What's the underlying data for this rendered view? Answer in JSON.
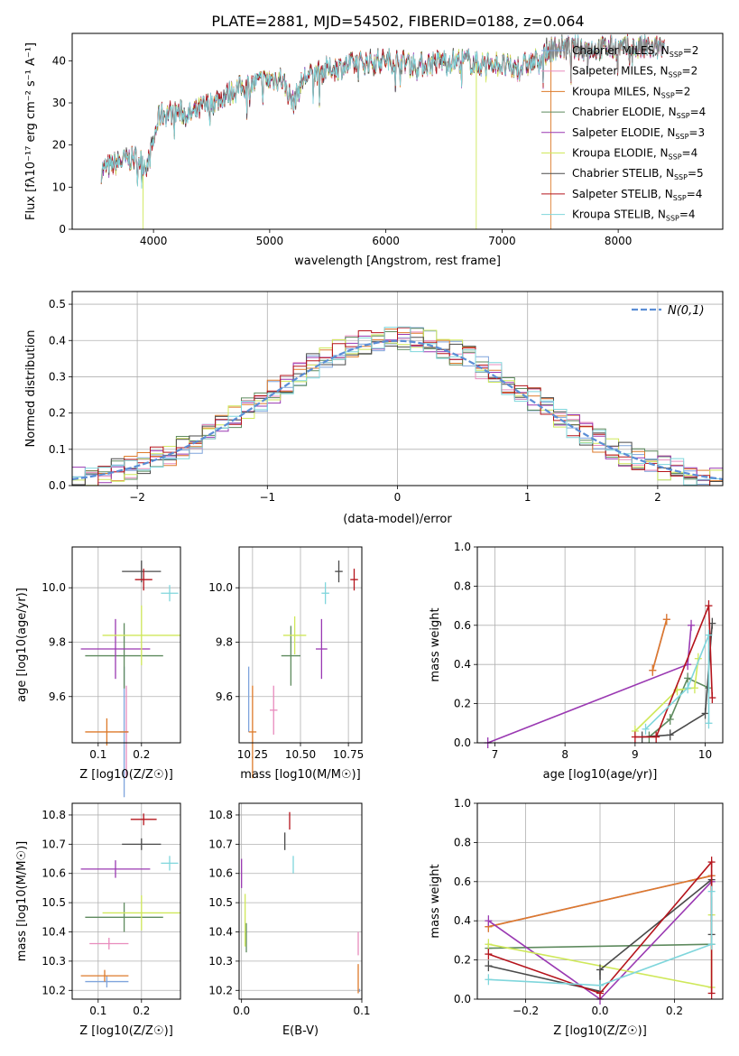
{
  "title": "PLATE=2881, MJD=54502, FIBERID=0188, z=0.064",
  "colors": {
    "Chabrier MILES": "#7fa4dc",
    "Salpeter MILES": "#e88bbd",
    "Kroupa MILES": "#dd7a2a",
    "Chabrier ELODIE": "#5e8a5e",
    "Salpeter ELODIE": "#9a39b2",
    "Kroupa ELODIE": "#cfe85a",
    "Chabrier STELIB": "#4a4a4a",
    "Salpeter STELIB": "#b5141c",
    "Kroupa STELIB": "#7fd6dc",
    "normal": "#5b8ed6"
  },
  "chart_data": [
    {
      "type": "line",
      "panel": "spectrum",
      "xlabel": "wavelength [Angstrom, rest frame]",
      "ylabel": "Flux [f_λ10^-17 erg cm^-2 s^-1 A^-1]",
      "xlim": [
        3300,
        8900
      ],
      "ylim": [
        0,
        46.5
      ],
      "xticks": [
        "4000",
        "5000",
        "6000",
        "7000",
        "8000"
      ],
      "yticks": [
        "0",
        "10",
        "20",
        "30",
        "40"
      ],
      "grid": false,
      "legend_position": "right",
      "continuum": {
        "x": [
          3550,
          3700,
          3850,
          3950,
          4050,
          4200,
          4300,
          4500,
          4700,
          4900,
          5100,
          5200,
          5300,
          5500,
          5700,
          5900,
          6100,
          6300,
          6500,
          6700,
          6800,
          6900,
          7100,
          7300,
          7420
        ],
        "y": [
          14,
          16,
          17,
          15,
          27,
          28,
          27,
          30,
          33,
          35,
          36,
          30,
          36,
          38,
          39,
          40,
          40,
          39,
          40,
          40,
          39,
          40,
          38,
          40,
          43
        ]
      },
      "dropouts": [
        {
          "series": "Kroupa ELODIE",
          "x": 3910
        },
        {
          "series": "Kroupa ELODIE",
          "x": 6780
        },
        {
          "series": "Kroupa MILES",
          "x": 7420
        }
      ],
      "series": [
        {
          "name": "Chabrier MILES",
          "N": "2"
        },
        {
          "name": "Salpeter MILES",
          "N": "2"
        },
        {
          "name": "Kroupa MILES",
          "N": "2"
        },
        {
          "name": "Chabrier ELODIE",
          "N": "4"
        },
        {
          "name": "Salpeter ELODIE",
          "N": "3"
        },
        {
          "name": "Kroupa ELODIE",
          "N": "4"
        },
        {
          "name": "Chabrier STELIB",
          "N": "5"
        },
        {
          "name": "Salpeter STELIB",
          "N": "4"
        },
        {
          "name": "Kroupa STELIB",
          "N": "4"
        }
      ]
    },
    {
      "type": "line",
      "panel": "residuals",
      "xlabel": "(data-model)/error",
      "ylabel": "Normed distribution",
      "xlim": [
        -2.5,
        2.5
      ],
      "ylim": [
        0,
        0.535
      ],
      "xticks": [
        "−2",
        "−1",
        "0",
        "1",
        "2"
      ],
      "yticks": [
        "0.0",
        "0.1",
        "0.2",
        "0.3",
        "0.4",
        "0.5"
      ],
      "grid": true,
      "legend_position": "top-right",
      "legend": "N(0,1)",
      "bin_width": 0.1
    },
    {
      "type": "scatter",
      "panel": "age-vs-Z",
      "xlabel": "Z [log10(Z/Z☉)]",
      "ylabel": "age [log10(age/yr)]",
      "xlim": [
        0.04,
        0.29
      ],
      "ylim": [
        9.43,
        10.15
      ],
      "xticks": [
        "0.1",
        "0.2"
      ],
      "yticks": [
        "9.6",
        "9.8",
        "10.0"
      ],
      "grid": true,
      "points": [
        {
          "series": "Chabrier MILES",
          "x": 0.16,
          "y": 9.47,
          "ex": 0.01,
          "ey": 0.24
        },
        {
          "series": "Salpeter MILES",
          "x": 0.165,
          "y": 9.47,
          "ex": 0.005,
          "ey": 0.17
        },
        {
          "series": "Kroupa MILES",
          "x": 0.12,
          "y": 9.47,
          "ex": 0.05,
          "ey": 0.05
        },
        {
          "series": "Chabrier ELODIE",
          "x": 0.16,
          "y": 9.75,
          "ex": 0.09,
          "ey": 0.12
        },
        {
          "series": "Salpeter ELODIE",
          "x": 0.14,
          "y": 9.775,
          "ex": 0.08,
          "ey": 0.11
        },
        {
          "series": "Kroupa ELODIE",
          "x": 0.2,
          "y": 9.825,
          "ex": 0.09,
          "ey": 0.11
        },
        {
          "series": "Chabrier STELIB",
          "x": 0.2,
          "y": 10.06,
          "ex": 0.045,
          "ey": 0.04
        },
        {
          "series": "Salpeter STELIB",
          "x": 0.205,
          "y": 10.03,
          "ex": 0.02,
          "ey": 0.04
        },
        {
          "series": "Kroupa STELIB",
          "x": 0.265,
          "y": 9.98,
          "ex": 0.02,
          "ey": 0.03
        }
      ]
    },
    {
      "type": "scatter",
      "panel": "age-vs-mass",
      "xlabel": "mass [log10(M/M☉)]",
      "ylabel": "",
      "xlim": [
        10.18,
        10.82
      ],
      "ylim": [
        9.43,
        10.15
      ],
      "xticks": [
        "10.25",
        "10.50",
        "10.75"
      ],
      "yticks": [
        "9.6",
        "9.8",
        "10.0"
      ],
      "grid": true,
      "points": [
        {
          "series": "Chabrier MILES",
          "x": 10.23,
          "y": 9.59,
          "ex": 0.0,
          "ey": 0.12
        },
        {
          "series": "Salpeter MILES",
          "x": 10.36,
          "y": 9.55,
          "ex": 0.02,
          "ey": 0.09
        },
        {
          "series": "Kroupa MILES",
          "x": 10.25,
          "y": 9.47,
          "ex": 0.02,
          "ey": 0.17
        },
        {
          "series": "Chabrier ELODIE",
          "x": 10.45,
          "y": 9.75,
          "ex": 0.05,
          "ey": 0.11
        },
        {
          "series": "Salpeter ELODIE",
          "x": 10.61,
          "y": 9.775,
          "ex": 0.03,
          "ey": 0.11
        },
        {
          "series": "Kroupa ELODIE",
          "x": 10.47,
          "y": 9.825,
          "ex": 0.06,
          "ey": 0.07
        },
        {
          "series": "Chabrier STELIB",
          "x": 10.7,
          "y": 10.06,
          "ex": 0.02,
          "ey": 0.04
        },
        {
          "series": "Salpeter STELIB",
          "x": 10.78,
          "y": 10.03,
          "ex": 0.02,
          "ey": 0.04
        },
        {
          "series": "Kroupa STELIB",
          "x": 10.63,
          "y": 9.98,
          "ex": 0.02,
          "ey": 0.04
        }
      ]
    },
    {
      "type": "line",
      "panel": "weight-vs-age",
      "xlabel": "age [log10(age/yr)]",
      "ylabel": "mass weight",
      "xlim": [
        6.75,
        10.25
      ],
      "ylim": [
        0,
        1.0
      ],
      "xticks": [
        "7",
        "8",
        "9",
        "10"
      ],
      "yticks": [
        "0.0",
        "0.2",
        "0.4",
        "0.6",
        "0.8",
        "1.0"
      ],
      "grid": true,
      "series": [
        {
          "name": "Chabrier MILES",
          "x": [
            9.25,
            9.45
          ],
          "y": [
            0.37,
            0.63
          ]
        },
        {
          "name": "Salpeter MILES",
          "x": [
            9.25,
            9.45
          ],
          "y": [
            0.37,
            0.63
          ]
        },
        {
          "name": "Kroupa MILES",
          "x": [
            9.25,
            9.45
          ],
          "y": [
            0.37,
            0.63
          ]
        },
        {
          "name": "Chabrier ELODIE",
          "x": [
            9.2,
            9.5,
            9.75,
            10.05
          ],
          "y": [
            0.03,
            0.12,
            0.33,
            0.28
          ]
        },
        {
          "name": "Salpeter ELODIE",
          "x": [
            6.9,
            9.75,
            9.8
          ],
          "y": [
            0.0,
            0.4,
            0.6
          ]
        },
        {
          "name": "Kroupa ELODIE",
          "x": [
            9.0,
            9.6,
            9.85,
            9.9
          ],
          "y": [
            0.06,
            0.27,
            0.28,
            0.43
          ]
        },
        {
          "name": "Chabrier STELIB",
          "x": [
            9.1,
            9.5,
            10.0,
            10.1
          ],
          "y": [
            0.03,
            0.04,
            0.15,
            0.61
          ]
        },
        {
          "name": "Salpeter STELIB",
          "x": [
            9.0,
            9.3,
            10.05,
            10.1
          ],
          "y": [
            0.03,
            0.03,
            0.7,
            0.23
          ]
        },
        {
          "name": "Kroupa STELIB",
          "x": [
            9.15,
            9.75,
            10.05,
            10.05
          ],
          "y": [
            0.07,
            0.28,
            0.55,
            0.1
          ]
        }
      ]
    },
    {
      "type": "scatter",
      "panel": "mass-vs-Z",
      "xlabel": "Z [log10(Z/Z☉)]",
      "ylabel": "mass [log10(M/M☉)]",
      "xlim": [
        0.04,
        0.29
      ],
      "ylim": [
        10.17,
        10.84
      ],
      "xticks": [
        "0.1",
        "0.2"
      ],
      "yticks": [
        "10.2",
        "10.3",
        "10.4",
        "10.5",
        "10.6",
        "10.7",
        "10.8"
      ],
      "grid": true,
      "points": [
        {
          "series": "Chabrier MILES",
          "x": 0.12,
          "y": 10.23,
          "ex": 0.05,
          "ey": 0.02
        },
        {
          "series": "Salpeter MILES",
          "x": 0.125,
          "y": 10.36,
          "ex": 0.045,
          "ey": 0.02
        },
        {
          "series": "Kroupa MILES",
          "x": 0.115,
          "y": 10.25,
          "ex": 0.055,
          "ey": 0.02
        },
        {
          "series": "Chabrier ELODIE",
          "x": 0.16,
          "y": 10.45,
          "ex": 0.09,
          "ey": 0.05
        },
        {
          "series": "Salpeter ELODIE",
          "x": 0.14,
          "y": 10.615,
          "ex": 0.08,
          "ey": 0.03
        },
        {
          "series": "Kroupa ELODIE",
          "x": 0.2,
          "y": 10.465,
          "ex": 0.09,
          "ey": 0.06
        },
        {
          "series": "Chabrier STELIB",
          "x": 0.2,
          "y": 10.7,
          "ex": 0.045,
          "ey": 0.02
        },
        {
          "series": "Salpeter STELIB",
          "x": 0.205,
          "y": 10.785,
          "ex": 0.03,
          "ey": 0.02
        },
        {
          "series": "Kroupa STELIB",
          "x": 0.265,
          "y": 10.635,
          "ex": 0.02,
          "ey": 0.025
        }
      ]
    },
    {
      "type": "scatter",
      "panel": "mass-vs-EBV",
      "xlabel": "E(B-V)",
      "ylabel": "",
      "xlim": [
        -0.002,
        0.1
      ],
      "ylim": [
        10.17,
        10.84
      ],
      "xticks": [
        "0.0",
        "0.1"
      ],
      "yticks": [
        "10.2",
        "10.3",
        "10.4",
        "10.5",
        "10.6",
        "10.7",
        "10.8"
      ],
      "grid": true,
      "points": [
        {
          "series": "Chabrier MILES",
          "x": 0.098,
          "y": 10.2,
          "ey": 0.005
        },
        {
          "series": "Salpeter MILES",
          "x": 0.097,
          "y": 10.36,
          "ey": 0.04
        },
        {
          "series": "Kroupa MILES",
          "x": 0.097,
          "y": 10.24,
          "ey": 0.05
        },
        {
          "series": "Chabrier ELODIE",
          "x": 0.004,
          "y": 10.38,
          "ey": 0.05
        },
        {
          "series": "Salpeter ELODIE",
          "x": 0.0,
          "y": 10.6,
          "ey": 0.05
        },
        {
          "series": "Kroupa ELODIE",
          "x": 0.003,
          "y": 10.44,
          "ey": 0.09
        },
        {
          "series": "Chabrier STELIB",
          "x": 0.036,
          "y": 10.71,
          "ey": 0.03
        },
        {
          "series": "Salpeter STELIB",
          "x": 0.04,
          "y": 10.78,
          "ey": 0.03
        },
        {
          "series": "Kroupa STELIB",
          "x": 0.043,
          "y": 10.63,
          "ey": 0.03
        }
      ]
    },
    {
      "type": "line",
      "panel": "weight-vs-Z",
      "xlabel": "Z [log10(Z/Z☉)]",
      "ylabel": "mass weight",
      "xlim": [
        -0.33,
        0.33
      ],
      "ylim": [
        0,
        1.0
      ],
      "xticks": [
        "−0.2",
        "0.0",
        "0.2"
      ],
      "yticks": [
        "0.0",
        "0.2",
        "0.4",
        "0.6",
        "0.8",
        "1.0"
      ],
      "grid": true,
      "series": [
        {
          "name": "Chabrier MILES",
          "x": [
            -0.3,
            0.3
          ],
          "y": [
            0.37,
            0.63
          ]
        },
        {
          "name": "Salpeter MILES",
          "x": [
            -0.3,
            0.3
          ],
          "y": [
            0.37,
            0.63
          ]
        },
        {
          "name": "Kroupa MILES",
          "x": [
            -0.3,
            0.3
          ],
          "y": [
            0.37,
            0.63
          ]
        },
        {
          "name": "Chabrier ELODIE",
          "x": [
            -0.3,
            0.3
          ],
          "y": [
            0.26,
            0.28
          ]
        },
        {
          "name": "Salpeter ELODIE",
          "x": [
            -0.3,
            0.0,
            0.3
          ],
          "y": [
            0.4,
            0.0,
            0.6
          ]
        },
        {
          "name": "Kroupa ELODIE",
          "x": [
            -0.3,
            0.3,
            0.3
          ],
          "y": [
            0.28,
            0.06,
            0.43
          ]
        },
        {
          "name": "Chabrier STELIB",
          "x": [
            -0.3,
            0.0,
            0.0,
            0.3,
            0.3
          ],
          "y": [
            0.17,
            0.04,
            0.15,
            0.61,
            0.33
          ]
        },
        {
          "name": "Salpeter STELIB",
          "x": [
            -0.3,
            0.0,
            0.3,
            0.3
          ],
          "y": [
            0.23,
            0.03,
            0.7,
            0.03
          ]
        },
        {
          "name": "Kroupa STELIB",
          "x": [
            -0.3,
            0.0,
            0.3,
            0.3
          ],
          "y": [
            0.1,
            0.07,
            0.28,
            0.55
          ]
        }
      ]
    }
  ]
}
